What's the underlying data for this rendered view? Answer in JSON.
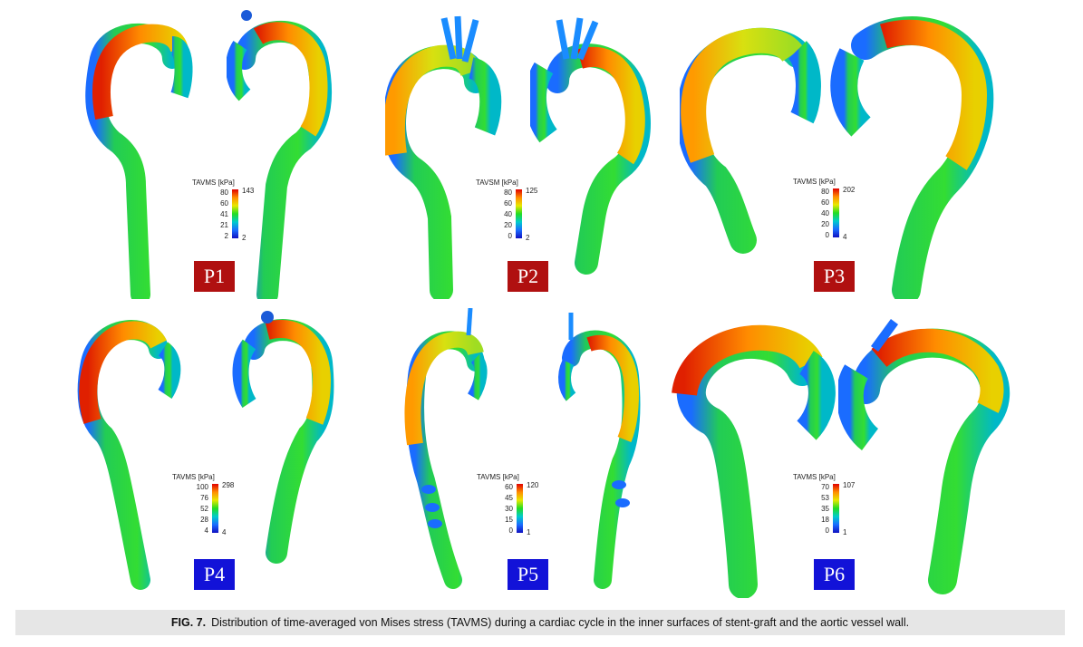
{
  "panels": [
    {
      "id": "P1",
      "label": "P1",
      "label_color": "#b01010",
      "legend": {
        "title": "TAVMS [kPa]",
        "left_ticks": [
          "80",
          "60",
          "41",
          "21",
          "2"
        ],
        "top_right": "143",
        "bottom_right": "2"
      }
    },
    {
      "id": "P2",
      "label": "P2",
      "label_color": "#b01010",
      "legend": {
        "title": "TAVSM [kPa]",
        "left_ticks": [
          "80",
          "60",
          "40",
          "20",
          "0"
        ],
        "top_right": "125",
        "bottom_right": "2"
      }
    },
    {
      "id": "P3",
      "label": "P3",
      "label_color": "#b01010",
      "legend": {
        "title": "TAVMS [kPa]",
        "left_ticks": [
          "80",
          "60",
          "40",
          "20",
          "0"
        ],
        "top_right": "202",
        "bottom_right": "4"
      }
    },
    {
      "id": "P4",
      "label": "P4",
      "label_color": "#1212d8",
      "legend": {
        "title": "TAVMS [kPa]",
        "left_ticks": [
          "100",
          "76",
          "52",
          "28",
          "4"
        ],
        "top_right": "298",
        "bottom_right": "4"
      }
    },
    {
      "id": "P5",
      "label": "P5",
      "label_color": "#1212d8",
      "legend": {
        "title": "TAVMS [kPa]",
        "left_ticks": [
          "60",
          "45",
          "30",
          "15",
          "0"
        ],
        "top_right": "120",
        "bottom_right": "1"
      }
    },
    {
      "id": "P6",
      "label": "P6",
      "label_color": "#1212d8",
      "legend": {
        "title": "TAVMS [kPa]",
        "left_ticks": [
          "70",
          "53",
          "35",
          "18",
          "0"
        ],
        "top_right": "107",
        "bottom_right": "1"
      }
    }
  ],
  "colormap": [
    "#1010c0",
    "#1a6cff",
    "#00cccc",
    "#22dd22",
    "#e8e800",
    "#ff8c00",
    "#e00000"
  ],
  "caption": {
    "label": "FIG. 7.",
    "text": "Distribution of time-averaged von Mises stress (TAVMS) during a cardiac cycle in the inner surfaces of stent-graft and the aortic vessel wall."
  }
}
